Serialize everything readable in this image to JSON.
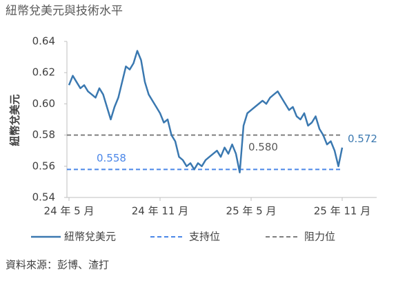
{
  "chart_data": {
    "type": "line",
    "title": "紐幣兌美元與技術水平",
    "y_label": "紐幣兌美元",
    "source": "資料來源：彭博、渣打",
    "categories": [
      "24 年 5 月",
      null,
      null,
      null,
      null,
      null,
      null,
      null,
      null,
      null,
      null,
      null,
      null,
      null,
      null,
      null,
      null,
      null,
      null,
      null,
      null,
      null,
      null,
      null,
      "24 年 11 月",
      null,
      null,
      null,
      null,
      null,
      null,
      null,
      null,
      null,
      null,
      null,
      null,
      null,
      null,
      null,
      null,
      null,
      null,
      null,
      null,
      null,
      null,
      null,
      "25 年 5 月",
      null,
      null,
      null,
      null,
      null,
      null,
      null,
      null,
      null,
      null,
      null,
      null,
      null,
      null,
      null,
      null,
      null,
      null,
      null,
      null,
      null,
      null,
      null,
      "25 年 11 月"
    ],
    "series": [
      {
        "name": "紐幣兌美元",
        "color": "#3a78b0",
        "last_value_label": "0.572",
        "values": [
          0.612,
          0.618,
          0.614,
          0.61,
          0.612,
          0.608,
          0.606,
          0.604,
          0.61,
          0.606,
          0.598,
          0.59,
          0.598,
          0.604,
          0.614,
          0.624,
          0.622,
          0.626,
          0.634,
          0.628,
          0.614,
          0.606,
          0.602,
          0.598,
          0.594,
          0.588,
          0.59,
          0.58,
          0.576,
          0.566,
          0.564,
          0.56,
          0.562,
          0.558,
          0.562,
          0.56,
          0.564,
          0.566,
          0.568,
          0.57,
          0.566,
          0.572,
          0.568,
          0.574,
          0.568,
          0.556,
          0.586,
          0.594,
          0.596,
          0.598,
          0.6,
          0.602,
          0.6,
          0.604,
          0.606,
          0.608,
          0.604,
          0.6,
          0.596,
          0.598,
          0.592,
          0.59,
          0.594,
          0.586,
          0.588,
          0.592,
          0.584,
          0.58,
          0.574,
          0.576,
          0.57,
          0.56,
          0.572
        ]
      }
    ],
    "reference_lines": [
      {
        "name": "支持位",
        "value": 0.558,
        "label": "0.558",
        "color": "#4a86e8"
      },
      {
        "name": "阻力位",
        "value": 0.58,
        "label": "0.580",
        "color": "#7f7f7f"
      }
    ],
    "ylim": [
      0.54,
      0.64
    ],
    "yticks": [
      0.54,
      0.56,
      0.58,
      {
        "value": 0.6,
        "label": "0.60"
      },
      0.62,
      0.64
    ]
  }
}
